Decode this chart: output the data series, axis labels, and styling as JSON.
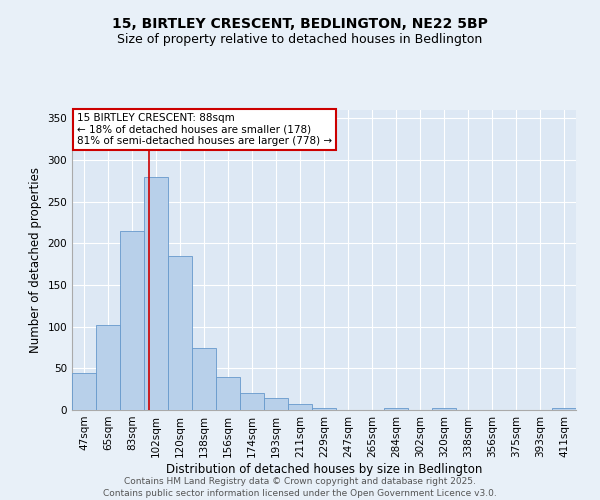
{
  "title": "15, BIRTLEY CRESCENT, BEDLINGTON, NE22 5BP",
  "subtitle": "Size of property relative to detached houses in Bedlington",
  "xlabel": "Distribution of detached houses by size in Bedlington",
  "ylabel": "Number of detached properties",
  "categories": [
    "47sqm",
    "65sqm",
    "83sqm",
    "102sqm",
    "120sqm",
    "138sqm",
    "156sqm",
    "174sqm",
    "193sqm",
    "211sqm",
    "229sqm",
    "247sqm",
    "265sqm",
    "284sqm",
    "302sqm",
    "320sqm",
    "338sqm",
    "356sqm",
    "375sqm",
    "393sqm",
    "411sqm"
  ],
  "values": [
    45,
    102,
    215,
    280,
    185,
    75,
    40,
    20,
    15,
    7,
    2,
    0,
    0,
    2,
    0,
    2,
    0,
    0,
    0,
    0,
    2
  ],
  "bar_color": "#b8d0ea",
  "bar_edge_color": "#6699cc",
  "vline_x_index": 2.72,
  "vline_color": "#cc0000",
  "annotation_text": "15 BIRTLEY CRESCENT: 88sqm\n← 18% of detached houses are smaller (178)\n81% of semi-detached houses are larger (778) →",
  "annotation_box_facecolor": "#ffffff",
  "annotation_box_edgecolor": "#cc0000",
  "background_color": "#e8f0f8",
  "plot_bg_color": "#dde8f4",
  "grid_color": "#ffffff",
  "footer_text": "Contains HM Land Registry data © Crown copyright and database right 2025.\nContains public sector information licensed under the Open Government Licence v3.0.",
  "ylim": [
    0,
    360
  ],
  "yticks": [
    0,
    50,
    100,
    150,
    200,
    250,
    300,
    350
  ],
  "title_fontsize": 10,
  "subtitle_fontsize": 9,
  "xlabel_fontsize": 8.5,
  "ylabel_fontsize": 8.5,
  "tick_fontsize": 7.5,
  "annotation_fontsize": 7.5,
  "footer_fontsize": 6.5
}
